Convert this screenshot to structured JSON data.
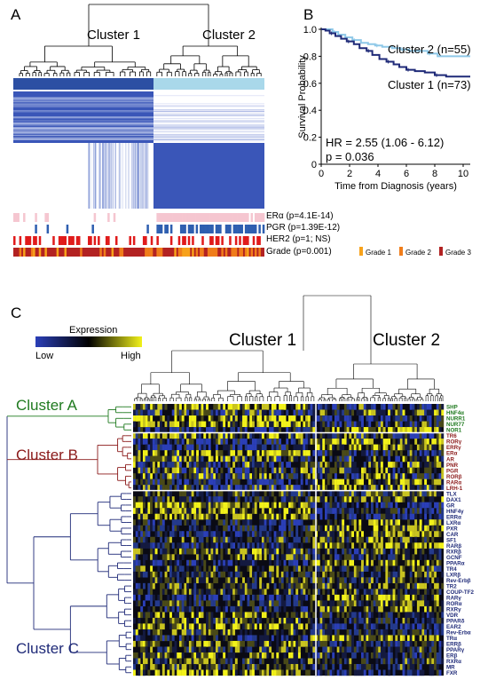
{
  "panels": {
    "a": "A",
    "b": "B",
    "c": "C"
  },
  "panel_a": {
    "cluster1": "Cluster 1",
    "cluster2": "Cluster 2",
    "tracks": [
      {
        "label": "ERα (p=4.1E-14)",
        "color": "#f5c6d0"
      },
      {
        "label": "PGR (p=1.39E-12)",
        "color": "#2f5fb0"
      },
      {
        "label": "HER2 (p=1; NS)",
        "color": "#e01b1b"
      },
      {
        "label": "Grade (p=0.001)",
        "color": "#b22222"
      }
    ],
    "grade_legend": [
      {
        "label": "Grade 1",
        "color": "#f7a21b"
      },
      {
        "label": "Grade 2",
        "color": "#f07d1a"
      },
      {
        "label": "Grade 3",
        "color": "#b22222"
      }
    ],
    "colors": {
      "cluster1": "#2c4fa3",
      "cluster2": "#a9d8ea"
    }
  },
  "chart_data": {
    "type": "line",
    "title": "",
    "xlabel": "Time from Diagnosis (years)",
    "ylabel": "Survival Probability",
    "xlim": [
      0,
      10.5
    ],
    "ylim": [
      0,
      1.0
    ],
    "xticks": [
      "0",
      "2",
      "4",
      "6",
      "8",
      "10"
    ],
    "yticks": [
      "0",
      "0.2",
      "0.4",
      "0.6",
      "0.8",
      "1.0"
    ],
    "series": [
      {
        "name": "Cluster 2 (n=55)",
        "color": "#8ec8e8",
        "x": [
          0,
          0.5,
          0.8,
          1.2,
          1.7,
          2.2,
          2.8,
          3.3,
          3.8,
          4.3,
          5.0,
          5.6,
          6.2,
          6.8,
          7.5,
          8.2,
          10.5
        ],
        "y": [
          1.0,
          1.0,
          0.98,
          0.96,
          0.94,
          0.92,
          0.9,
          0.89,
          0.88,
          0.87,
          0.86,
          0.85,
          0.84,
          0.84,
          0.82,
          0.8,
          0.8
        ]
      },
      {
        "name": "Cluster 1 (n=73)",
        "color": "#1f2a78",
        "x": [
          0,
          0.3,
          0.6,
          1.0,
          1.4,
          1.8,
          2.3,
          2.7,
          3.2,
          3.6,
          4.1,
          4.6,
          5.1,
          5.5,
          6.0,
          6.6,
          7.3,
          8.0,
          8.8,
          10.5
        ],
        "y": [
          1.0,
          0.99,
          0.97,
          0.95,
          0.93,
          0.91,
          0.89,
          0.86,
          0.84,
          0.81,
          0.78,
          0.76,
          0.74,
          0.72,
          0.7,
          0.69,
          0.68,
          0.66,
          0.65,
          0.65
        ]
      }
    ],
    "annotations": {
      "hr": "HR = 2.55 (1.06 - 6.12)",
      "p": "p = 0.036"
    }
  },
  "panel_c": {
    "legend_title": "Expression",
    "legend_low": "Low",
    "legend_high": "High",
    "cluster1": "Cluster 1",
    "cluster2": "Cluster 2",
    "clusterA": {
      "label": "Cluster A",
      "color": "#1f7a1f",
      "genes": [
        "SHP",
        "HNF4α",
        "NURR1",
        "NUR77",
        "NOR1"
      ]
    },
    "clusterB": {
      "label": "Cluster B",
      "color": "#8b1a1a",
      "genes": [
        "TR6",
        "RORγ",
        "ERRγ",
        "ERα",
        "AR",
        "PNR",
        "PGR",
        "RORβ",
        "RARα",
        "LRH-1"
      ]
    },
    "clusterC": {
      "label": "Cluster C",
      "color": "#1f2a78",
      "genes": [
        "TLX",
        "DAX1",
        "GR",
        "HNF4γ",
        "ERRα",
        "LXRα",
        "PXR",
        "CAR",
        "SF1",
        "RARβ",
        "RXRβ",
        "GCNF",
        "PPARα",
        "TR4",
        "LXRβ",
        "Rev-Erbβ",
        "TR2",
        "COUP-TF2",
        "RARγ",
        "RORα",
        "RXRγ",
        "VDR",
        "PPARδ",
        "EAR2",
        "Rev-Erbα",
        "TRα",
        "ERRβ",
        "PPARγ",
        "ERβ",
        "RXRα",
        "MR",
        "FXR"
      ]
    }
  }
}
